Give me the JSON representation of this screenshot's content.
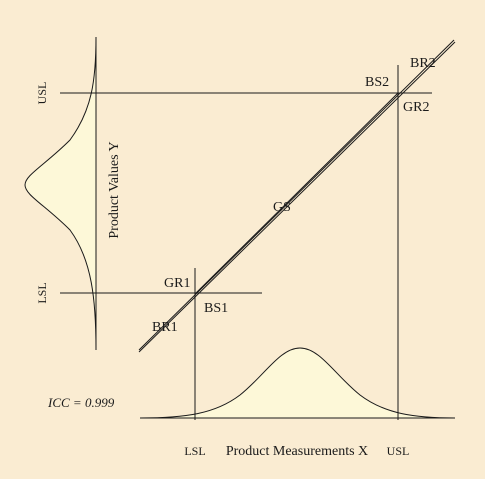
{
  "diagram": {
    "x_axis_label": "Product Measurements X",
    "y_axis_label": "Product Values Y",
    "x_lsl": "LSL",
    "x_usl": "USL",
    "y_lsl": "LSL",
    "y_usl": "USL",
    "icc": "ICC = 0.999",
    "region_labels": {
      "gs": "GS",
      "gr1": "GR1",
      "gr2": "GR2",
      "bs1": "BS1",
      "bs2": "BS2",
      "br1": "BR1",
      "br2": "BR2"
    },
    "colors": {
      "background": "#faecd2",
      "curve_fill": "#fdf8d8",
      "line": "#1a1a1a"
    }
  }
}
